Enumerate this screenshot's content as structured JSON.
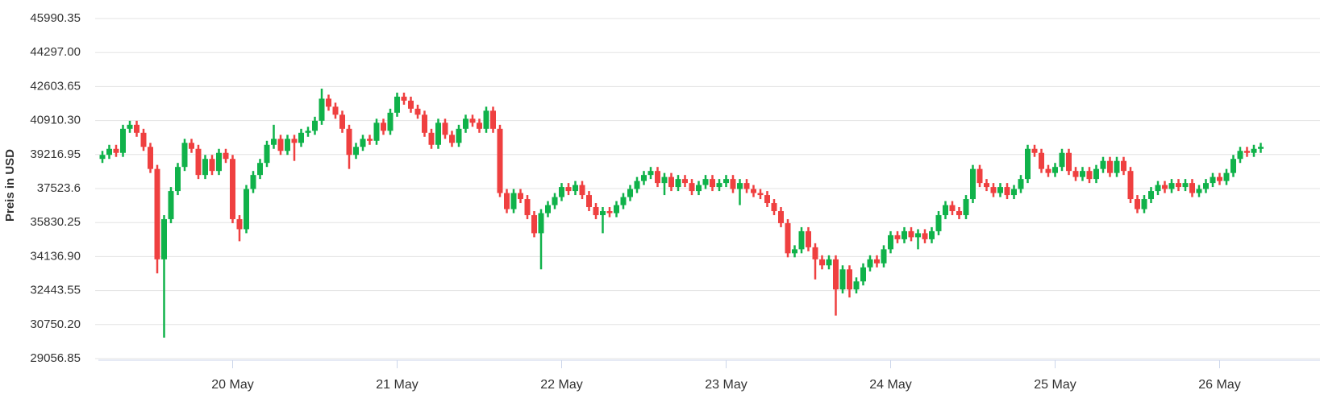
{
  "chart_data": {
    "type": "candlestick",
    "y_label": "Preis in USD",
    "up_color": "#10b24a",
    "down_color": "#ef4040",
    "grid": true,
    "ylim": [
      29056.85,
      45990.35
    ],
    "yticks": [
      29056.85,
      {
        "value": 30750.2,
        "label": "30750.20"
      },
      32443.55,
      {
        "value": 34136.9,
        "label": "34136.90"
      },
      35830.25,
      37523.6,
      39216.95,
      {
        "value": 40910.3,
        "label": "40910.30"
      },
      42603.65,
      {
        "value": 44297,
        "label": "44297.00"
      },
      45990.35
    ],
    "categories": [
      null,
      null,
      null,
      null,
      null,
      null,
      null,
      null,
      null,
      null,
      null,
      null,
      null,
      null,
      null,
      null,
      null,
      null,
      null,
      "20 May",
      null,
      null,
      null,
      null,
      null,
      null,
      null,
      null,
      null,
      null,
      null,
      null,
      null,
      null,
      null,
      null,
      null,
      null,
      null,
      null,
      null,
      null,
      null,
      "21 May",
      null,
      null,
      null,
      null,
      null,
      null,
      null,
      null,
      null,
      null,
      null,
      null,
      null,
      null,
      null,
      null,
      null,
      null,
      null,
      null,
      null,
      null,
      null,
      "22 May",
      null,
      null,
      null,
      null,
      null,
      null,
      null,
      null,
      null,
      null,
      null,
      null,
      null,
      null,
      null,
      null,
      null,
      null,
      null,
      null,
      null,
      null,
      null,
      "23 May",
      null,
      null,
      null,
      null,
      null,
      null,
      null,
      null,
      null,
      null,
      null,
      null,
      null,
      null,
      null,
      null,
      null,
      null,
      null,
      null,
      null,
      null,
      null,
      "24 May",
      null,
      null,
      null,
      null,
      null,
      null,
      null,
      null,
      null,
      null,
      null,
      null,
      null,
      null,
      null,
      null,
      null,
      null,
      null,
      null,
      null,
      null,
      null,
      "25 May",
      null,
      null,
      null,
      null,
      null,
      null,
      null,
      null,
      null,
      null,
      null,
      null,
      null,
      null,
      null,
      null,
      null,
      null,
      null,
      null,
      null,
      null,
      null,
      "26 May",
      null,
      null,
      null,
      null,
      null,
      null
    ],
    "open": [
      39000,
      39200,
      39500,
      39300,
      40500,
      40700,
      40300,
      39600,
      38500,
      34000,
      36000,
      37400,
      38600,
      39800,
      39500,
      38200,
      39000,
      38400,
      39300,
      39000,
      36000,
      35500,
      37500,
      38200,
      38800,
      39700,
      40000,
      39400,
      40000,
      39800,
      40300,
      40400,
      40900,
      42000,
      41600,
      41200,
      40500,
      39200,
      39600,
      40000,
      39900,
      40800,
      40400,
      41300,
      42100,
      41900,
      41500,
      41200,
      40300,
      39700,
      40800,
      40200,
      39800,
      40500,
      41000,
      40800,
      40500,
      41400,
      40500,
      37300,
      36500,
      37300,
      37000,
      36200,
      35300,
      36300,
      36700,
      37100,
      37600,
      37400,
      37700,
      37200,
      36600,
      36200,
      36400,
      36300,
      36700,
      37100,
      37500,
      37900,
      38200,
      38400,
      37800,
      38100,
      37600,
      38000,
      37800,
      37400,
      37700,
      38000,
      37600,
      37800,
      38000,
      37500,
      37800,
      37500,
      37300,
      37200,
      36800,
      36400,
      35800,
      34300,
      34500,
      35400,
      34600,
      34000,
      33700,
      34000,
      32500,
      33500,
      32500,
      32900,
      33600,
      34000,
      33800,
      34500,
      35200,
      35000,
      35400,
      35100,
      35300,
      35000,
      35400,
      36200,
      36700,
      36400,
      36200,
      37000,
      38500,
      37800,
      37600,
      37300,
      37600,
      37200,
      37500,
      38000,
      39500,
      39300,
      38500,
      38300,
      38600,
      39300,
      38400,
      38100,
      38400,
      38000,
      38500,
      38900,
      38300,
      38900,
      38400,
      37000,
      36500,
      37000,
      37400,
      37700,
      37500,
      37800,
      37600,
      37800,
      37300,
      37500,
      37800,
      38100,
      37900,
      38300,
      39000,
      39400,
      39300,
      39500
    ],
    "high": [
      39400,
      39700,
      39700,
      40700,
      40900,
      40900,
      40500,
      39800,
      38700,
      36200,
      37600,
      38800,
      40000,
      40000,
      39700,
      39200,
      39200,
      39500,
      39500,
      39200,
      36200,
      37700,
      38400,
      39000,
      39900,
      40700,
      40200,
      40200,
      40200,
      40500,
      40600,
      41100,
      42500,
      42200,
      41800,
      41400,
      40700,
      39800,
      40200,
      40200,
      41000,
      41000,
      41500,
      42300,
      42300,
      42100,
      41700,
      41400,
      40500,
      41000,
      41000,
      40400,
      40700,
      41200,
      41200,
      41000,
      41600,
      41600,
      40700,
      37500,
      37500,
      37500,
      37200,
      36400,
      36500,
      36900,
      37300,
      37800,
      37800,
      37900,
      37900,
      37400,
      36800,
      36600,
      36600,
      36900,
      37300,
      37700,
      38100,
      38400,
      38600,
      38600,
      38300,
      38300,
      38200,
      38200,
      38000,
      37900,
      38200,
      38200,
      38000,
      38200,
      38200,
      38000,
      38000,
      37700,
      37500,
      37400,
      37000,
      36600,
      36000,
      34700,
      35600,
      35600,
      34800,
      34200,
      34200,
      34200,
      33700,
      33700,
      33100,
      33800,
      34200,
      34200,
      34700,
      35400,
      35400,
      35600,
      35600,
      35500,
      35500,
      35600,
      36400,
      36900,
      36900,
      36600,
      37200,
      38700,
      38700,
      38000,
      37800,
      37800,
      37800,
      37700,
      38200,
      39700,
      39700,
      39500,
      38700,
      38800,
      39500,
      39500,
      38600,
      38600,
      38600,
      38700,
      39100,
      39100,
      39100,
      39100,
      38600,
      37200,
      37200,
      37600,
      37900,
      37900,
      38000,
      38000,
      38000,
      38000,
      37700,
      38000,
      38300,
      38300,
      38500,
      39200,
      39600,
      39600,
      39700,
      39800
    ],
    "low": [
      38800,
      39000,
      39100,
      39100,
      40300,
      40100,
      39400,
      38300,
      33300,
      30100,
      35800,
      37200,
      38400,
      39300,
      38000,
      38000,
      38200,
      38200,
      38800,
      35800,
      34900,
      35300,
      37300,
      38000,
      38600,
      39500,
      39200,
      39200,
      38900,
      39600,
      40100,
      40200,
      40700,
      41400,
      41000,
      40300,
      38500,
      39000,
      39400,
      39700,
      39700,
      40200,
      40200,
      41100,
      41700,
      41300,
      41000,
      40100,
      39500,
      39500,
      40000,
      39600,
      39600,
      40300,
      40600,
      40300,
      40300,
      40300,
      37100,
      36300,
      36300,
      36800,
      36000,
      35100,
      33500,
      36100,
      36500,
      36900,
      37200,
      37200,
      37000,
      36400,
      36000,
      35300,
      36100,
      36100,
      36500,
      36900,
      37300,
      37700,
      38000,
      37600,
      37200,
      37400,
      37400,
      37600,
      37200,
      37200,
      37500,
      37400,
      37400,
      37600,
      37300,
      36700,
      37300,
      37100,
      37000,
      36600,
      36200,
      35600,
      34100,
      34100,
      34300,
      34400,
      33000,
      33500,
      33500,
      31200,
      32300,
      32100,
      32300,
      32700,
      33400,
      33600,
      33600,
      34300,
      34800,
      34800,
      34900,
      34500,
      34800,
      34800,
      35200,
      36000,
      36200,
      36000,
      36000,
      36800,
      37600,
      37400,
      37100,
      37100,
      37000,
      37000,
      37300,
      37800,
      39100,
      38300,
      38100,
      38100,
      38400,
      38200,
      37900,
      37900,
      37800,
      37800,
      38300,
      38100,
      38100,
      38200,
      36800,
      36300,
      36300,
      36800,
      37200,
      37300,
      37300,
      37400,
      37400,
      37100,
      37100,
      37300,
      37600,
      37700,
      37700,
      38100,
      38800,
      39100,
      39100,
      39300
    ],
    "close": [
      39200,
      39500,
      39300,
      40500,
      40700,
      40300,
      39600,
      38500,
      34000,
      36000,
      37400,
      38600,
      39800,
      39500,
      38200,
      39000,
      38400,
      39300,
      39000,
      36000,
      35500,
      37500,
      38200,
      38800,
      39700,
      40000,
      39400,
      40000,
      39800,
      40300,
      40400,
      40900,
      42000,
      41600,
      41200,
      40500,
      39200,
      39600,
      40000,
      39900,
      40800,
      40400,
      41300,
      42100,
      41900,
      41500,
      41200,
      40300,
      39700,
      40800,
      40200,
      39800,
      40500,
      41000,
      40800,
      40500,
      41400,
      40500,
      37300,
      36500,
      37300,
      37000,
      36200,
      35300,
      36300,
      36700,
      37100,
      37600,
      37400,
      37700,
      37200,
      36600,
      36200,
      36400,
      36300,
      36700,
      37100,
      37500,
      37900,
      38200,
      38400,
      37800,
      38100,
      37600,
      38000,
      37800,
      37400,
      37700,
      38000,
      37600,
      37800,
      38000,
      37500,
      37800,
      37500,
      37300,
      37200,
      36800,
      36400,
      35800,
      34300,
      34500,
      35400,
      34600,
      34000,
      33700,
      34000,
      32500,
      33500,
      32500,
      32900,
      33600,
      34000,
      33800,
      34500,
      35200,
      35000,
      35400,
      35100,
      35300,
      35000,
      35400,
      36200,
      36700,
      36400,
      36200,
      37000,
      38500,
      37800,
      37600,
      37300,
      37600,
      37200,
      37500,
      38000,
      39500,
      39300,
      38500,
      38300,
      38600,
      39300,
      38400,
      38100,
      38400,
      38000,
      38500,
      38900,
      38300,
      38900,
      38400,
      37000,
      36500,
      37000,
      37400,
      37700,
      37500,
      37800,
      37600,
      37800,
      37300,
      37500,
      37800,
      38100,
      37900,
      38300,
      39000,
      39400,
      39300,
      39500,
      39600
    ]
  }
}
